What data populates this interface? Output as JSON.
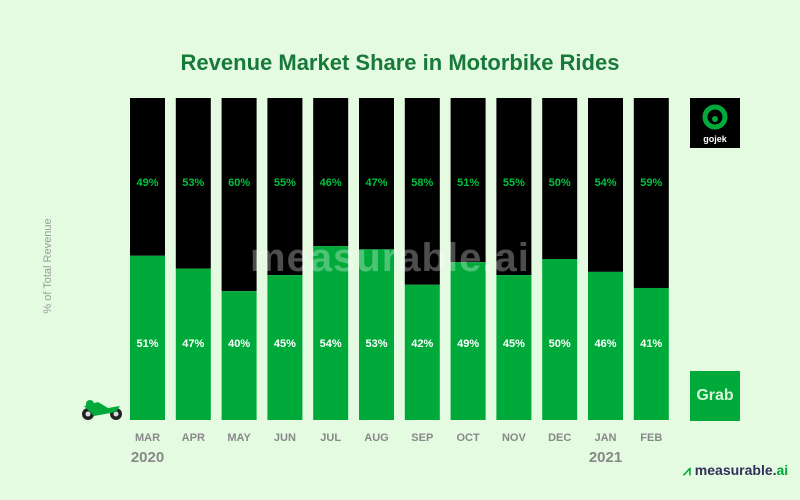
{
  "chart_data": {
    "type": "bar",
    "stacked": true,
    "title": "Revenue Market Share in Motorbike Rides",
    "ylabel": "% of Total Revenue",
    "ylim": [
      0,
      100
    ],
    "categories": [
      "MAR",
      "APR",
      "MAY",
      "JUN",
      "JUL",
      "AUG",
      "SEP",
      "OCT",
      "NOV",
      "DEC",
      "JAN",
      "FEB"
    ],
    "year_labels": {
      "MAR": "2020",
      "JAN": "2021"
    },
    "series": [
      {
        "name": "Grab",
        "color": "#00aa3a",
        "values": [
          51,
          47,
          40,
          45,
          54,
          53,
          42,
          49,
          45,
          50,
          46,
          41
        ]
      },
      {
        "name": "gojek",
        "color": "#000000",
        "values": [
          49,
          53,
          60,
          55,
          46,
          47,
          58,
          51,
          55,
          50,
          54,
          59
        ]
      }
    ],
    "legend": "right",
    "grid": false
  },
  "logos": {
    "gojek": "gojek",
    "grab": "Grab",
    "watermark": "measurable.ai",
    "brand_main": "measurable.",
    "brand_ai": "ai"
  }
}
